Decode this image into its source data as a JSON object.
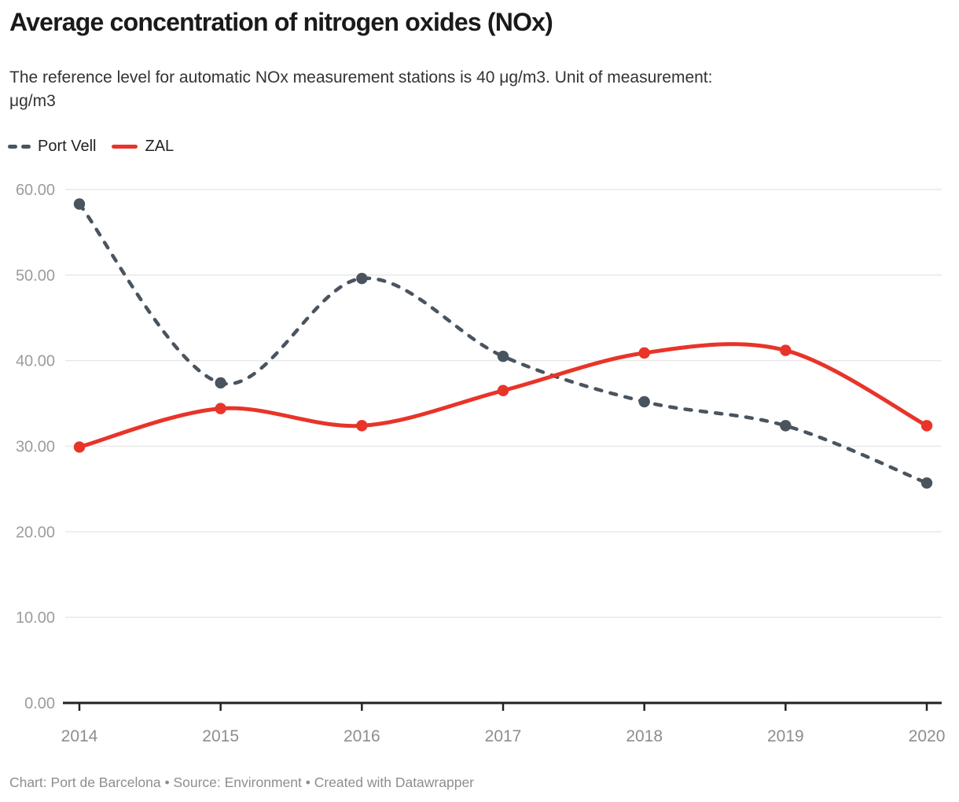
{
  "header": {
    "title": "Average concentration of nitrogen oxides (NOx)",
    "subtitle_line1": "The reference level for automatic NOx measurement stations is 40 μg/m3. Unit of measurement:",
    "subtitle_line2": "μg/m3"
  },
  "legend": {
    "items": [
      {
        "label": "Port Vell",
        "color": "#4a545e",
        "style": "dashed"
      },
      {
        "label": "ZAL",
        "color": "#e83429",
        "style": "solid"
      }
    ]
  },
  "chart_data": {
    "type": "line",
    "title": "Average concentration of nitrogen oxides (NOx)",
    "subtitle": "The reference level for automatic NOx measurement stations is 40 μg/m3. Unit of measurement: μg/m3",
    "x": [
      "2014",
      "2015",
      "2016",
      "2017",
      "2018",
      "2019",
      "2020"
    ],
    "series": [
      {
        "name": "Port Vell",
        "values": [
          58.3,
          37.4,
          49.6,
          40.5,
          35.2,
          32.4,
          25.7
        ],
        "color": "#4a545e",
        "line_style": "dashed",
        "marker": "circle"
      },
      {
        "name": "ZAL",
        "values": [
          29.9,
          34.4,
          32.4,
          36.5,
          40.9,
          41.2,
          32.4
        ],
        "color": "#e83429",
        "line_style": "solid",
        "marker": "circle"
      }
    ],
    "ylabel": "μg/m3",
    "xlabel": "",
    "ylim": [
      0,
      60
    ],
    "yticks": [
      {
        "value": 0,
        "label": "0.00"
      },
      {
        "value": 10,
        "label": "10.00"
      },
      {
        "value": 20,
        "label": "20.00"
      },
      {
        "value": 30,
        "label": "30.00"
      },
      {
        "value": 40,
        "label": "40.00"
      },
      {
        "value": 50,
        "label": "50.00"
      },
      {
        "value": 60,
        "label": "60.00"
      }
    ],
    "grid": "horizontal",
    "legend_position": "top-left",
    "curve": "smooth",
    "reference_note": "The reference level for automatic NOx measurement stations is 40 μg/m3"
  },
  "colors": {
    "background": "#ffffff",
    "grid_line": "#e8e8e8",
    "axis_line": "#222222",
    "y_tick_label": "#9c9c9c",
    "x_tick_label": "#8d8d8d",
    "title_text": "#1a1a1a",
    "subtitle_text": "#333333",
    "footer_text": "#8e8e8e"
  },
  "footer": {
    "credits": "Chart: Port de Barcelona • Source: Environment • Created with Datawrapper"
  }
}
